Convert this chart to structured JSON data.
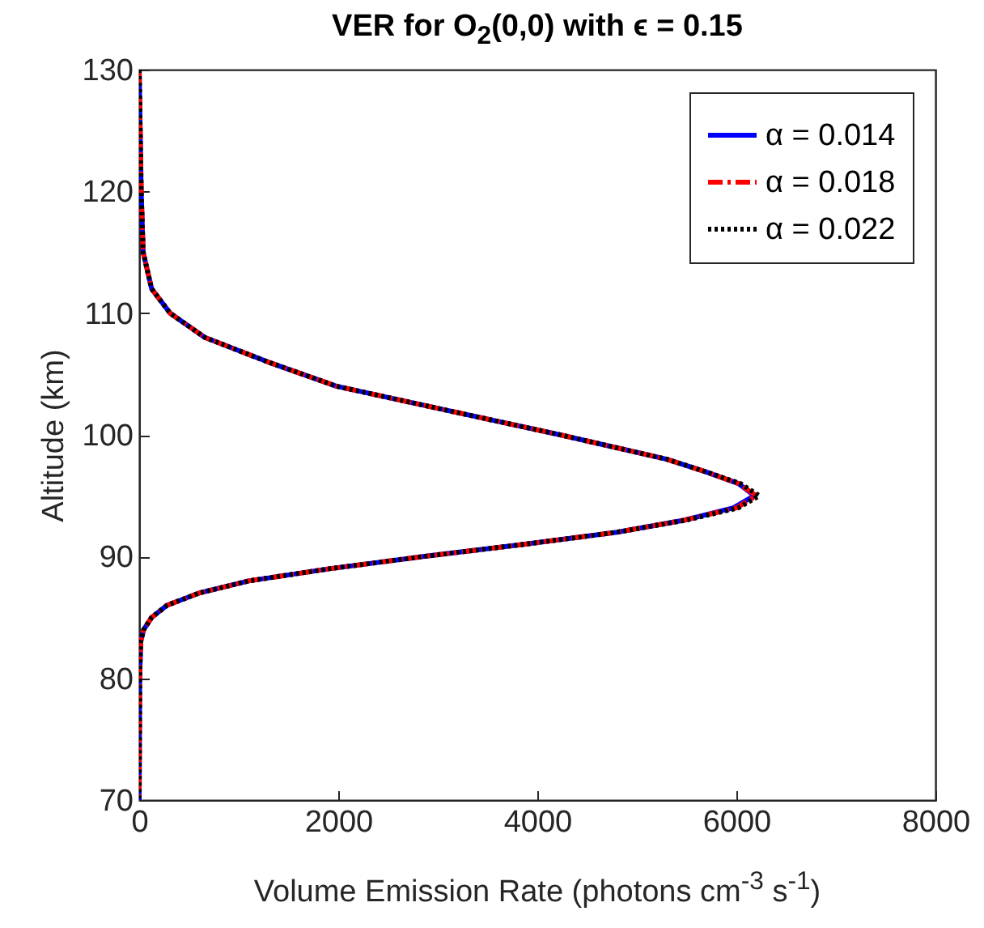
{
  "chart_data": {
    "type": "line",
    "title": "VER for O$_{2}$(0,0) with ϵ = 0.15",
    "xlabel": "Volume Emission Rate (photons cm$^{-3}$ s$^{-1}$)",
    "ylabel": "Altitude (km)",
    "xlim": [
      0,
      8000
    ],
    "xticks": [
      0,
      2000,
      4000,
      6000,
      8000
    ],
    "ylim": [
      70,
      130
    ],
    "yticks": [
      70,
      80,
      90,
      100,
      110,
      120,
      130
    ],
    "legend": "top right",
    "series": [
      {
        "name": "α = 0.014",
        "color": "#0000ff",
        "line_style": "solid",
        "x": [
          0,
          20,
          40,
          125,
          310,
          660,
          1290,
          1980,
          3100,
          4230,
          5300,
          5680,
          6020,
          6180,
          5970,
          5480,
          4800,
          3860,
          2850,
          1910,
          1100,
          600,
          280,
          125,
          45,
          15,
          5,
          0
        ],
        "values": [
          130,
          120,
          115,
          112,
          110,
          108,
          106,
          104,
          102,
          100,
          98,
          97,
          96,
          95,
          94,
          93,
          92,
          91,
          90,
          89,
          88,
          87,
          86,
          85,
          84,
          83,
          80,
          70
        ]
      },
      {
        "name": "α = 0.018",
        "color": "#ff0000",
        "line_style": "dashed",
        "x": [
          0,
          20,
          40,
          125,
          310,
          660,
          1290,
          1980,
          3100,
          4230,
          5300,
          5680,
          6020,
          6200,
          6000,
          5480,
          4800,
          3860,
          2850,
          1910,
          1100,
          600,
          280,
          125,
          45,
          15,
          5,
          0
        ],
        "values": [
          130,
          120,
          115,
          112,
          110,
          108,
          106,
          104,
          102,
          100,
          98,
          97,
          96,
          95,
          94,
          93,
          92,
          91,
          90,
          89,
          88,
          87,
          86,
          85,
          84,
          83,
          80,
          70
        ]
      },
      {
        "name": "α = 0.022",
        "color": "#000000",
        "line_style": "dotted",
        "x": [
          0,
          20,
          40,
          125,
          310,
          660,
          1290,
          1980,
          3100,
          4230,
          5300,
          5680,
          6040,
          6230,
          6020,
          5500,
          4800,
          3860,
          2850,
          1910,
          1100,
          600,
          280,
          125,
          45,
          15,
          5,
          0
        ],
        "values": [
          130,
          120,
          115,
          112,
          110,
          108,
          106,
          104,
          102,
          100,
          98,
          97,
          96,
          95,
          94,
          93,
          92,
          91,
          90,
          89,
          88,
          87,
          86,
          85,
          84,
          83,
          80,
          70
        ]
      }
    ]
  }
}
